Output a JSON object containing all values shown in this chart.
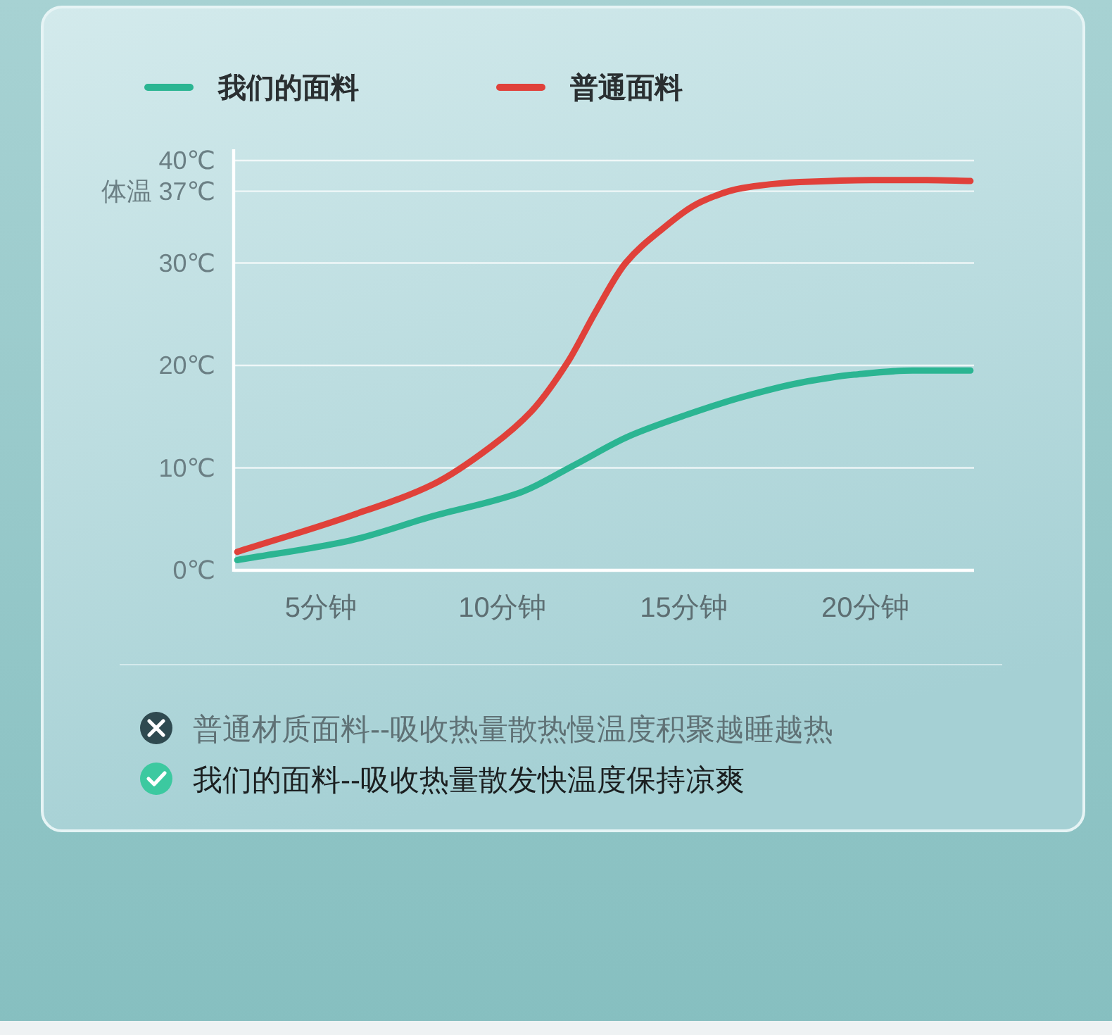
{
  "chart_data": {
    "type": "line",
    "xlim": [
      2.6,
      23
    ],
    "xticks": [
      {
        "value": 5,
        "label": "5分钟"
      },
      {
        "value": 10,
        "label": "10分钟"
      },
      {
        "value": 15,
        "label": "15分钟"
      },
      {
        "value": 20,
        "label": "20分钟"
      }
    ],
    "ylim": [
      0,
      40
    ],
    "yticks": [
      {
        "value": 0,
        "label": "0℃"
      },
      {
        "value": 10,
        "label": "10℃"
      },
      {
        "value": 20,
        "label": "20℃"
      },
      {
        "value": 30,
        "label": "30℃"
      },
      {
        "value": 37,
        "label": "体温 37℃"
      },
      {
        "value": 40,
        "label": "40℃"
      }
    ],
    "grid": "y",
    "legend": "top left",
    "series": [
      {
        "name": "我们的面料",
        "color": "#2bb592",
        "x": [
          2.7,
          5.8,
          8.1,
          10.5,
          12,
          13.5,
          15.1,
          16.6,
          18.2,
          19.7,
          21.3,
          22.9
        ],
        "values": [
          1,
          2.9,
          5.3,
          7.6,
          10.3,
          13.1,
          15.2,
          16.9,
          18.3,
          19.1,
          19.5,
          19.5
        ]
      },
      {
        "name": "普通面料",
        "color": "#e0413a",
        "x": [
          2.7,
          5.8,
          8.1,
          9.7,
          10.8,
          11.8,
          12.6,
          13.4,
          14.3,
          15.5,
          16.6,
          18.2,
          20.2,
          21.7,
          22.9
        ],
        "values": [
          1.8,
          5.3,
          8.4,
          12.1,
          15.5,
          20.3,
          25.4,
          30,
          33,
          36,
          37.3,
          37.9,
          38.1,
          38.1,
          38
        ]
      }
    ],
    "annotations": [
      "普通材质面料--吸收热量散热慢温度积聚越睡越热",
      "我们的面料--吸收热量散发快温度保持凉爽"
    ]
  }
}
